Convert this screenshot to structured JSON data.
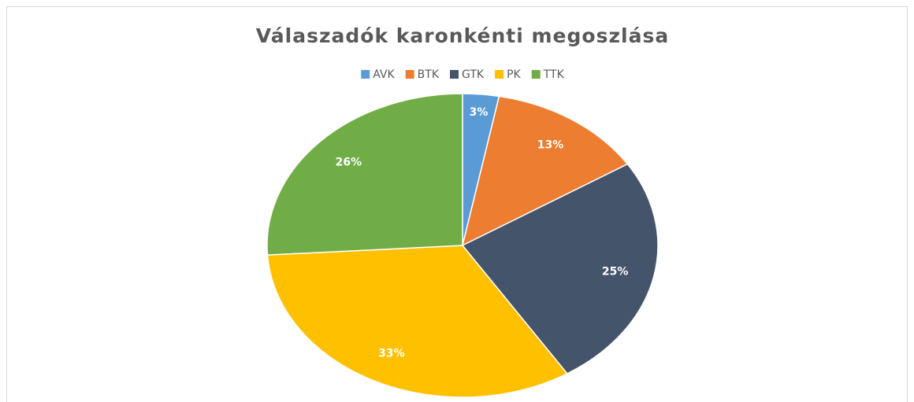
{
  "chart_data": {
    "type": "pie",
    "title": "Válaszadók karonkénti megoszlása",
    "categories": [
      "AVK",
      "BTK",
      "GTK",
      "PK",
      "TTK"
    ],
    "values": [
      3,
      13,
      25,
      33,
      26
    ],
    "value_labels": [
      "3%",
      "13%",
      "25%",
      "33%",
      "26%"
    ],
    "colors": [
      "#5b9bd5",
      "#ed7d31",
      "#44546a",
      "#ffc000",
      "#70ad47"
    ],
    "legend": "top"
  }
}
